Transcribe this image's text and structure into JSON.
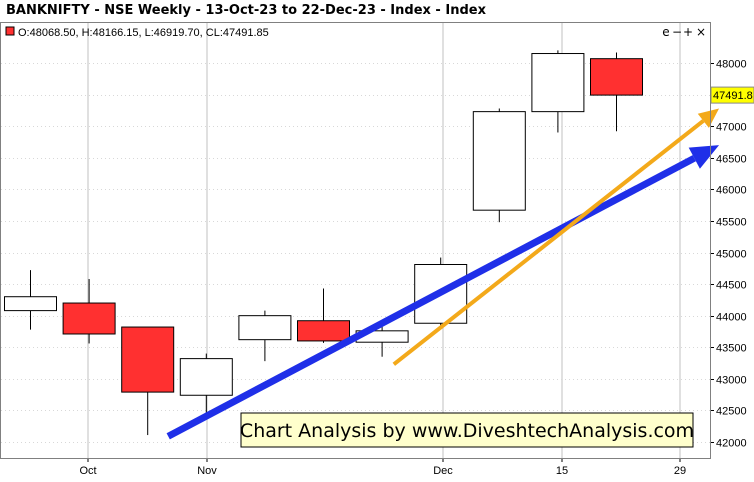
{
  "title": "BANKNIFTY - NSE Weekly - 13-Oct-23 to 22-Dec-23 - Index - Index",
  "ohlc_readout": "O:48068.50, H:48166.15, L:46919.70, CL:47491.85",
  "window_controls": {
    "collapse": "e",
    "minus": "−",
    "plus": "+",
    "close": "×"
  },
  "last_price_label": "47491.8",
  "watermark": "Chart Analysis by www.DiveshtechAnalysis.com",
  "colors": {
    "up_body": "#ffffff",
    "down_body": "#ff3030",
    "candle_outline": "#000000",
    "blue_arrow": "#1f2fe8",
    "orange_arrow": "#f3a91a",
    "price_tag": "#ffff00",
    "watermark_bg": "#ffffcc",
    "grid": "#c0c0c0"
  },
  "chart_data": {
    "type": "candlestick",
    "title": "BANKNIFTY - NSE Weekly - 13-Oct-23 to 22-Dec-23 - Index - Index",
    "x_tick_labels": [
      "Oct",
      "Nov",
      "Dec",
      "15",
      "29"
    ],
    "y_ticks": [
      42000,
      42500,
      43000,
      43500,
      44000,
      44500,
      45000,
      45500,
      46000,
      46500,
      47000,
      47500,
      48000
    ],
    "ylim": [
      41900,
      48450
    ],
    "grid": true,
    "candles": [
      {
        "open": 44080,
        "high": 44720,
        "low": 43780,
        "close": 44300
      },
      {
        "open": 44200,
        "high": 44580,
        "low": 43560,
        "close": 43710
      },
      {
        "open": 43820,
        "high": 43820,
        "low": 42110,
        "close": 42790
      },
      {
        "open": 42740,
        "high": 43400,
        "low": 42430,
        "close": 43320
      },
      {
        "open": 43620,
        "high": 44080,
        "low": 43280,
        "close": 44000
      },
      {
        "open": 43920,
        "high": 44430,
        "low": 43570,
        "close": 43600
      },
      {
        "open": 43580,
        "high": 43830,
        "low": 43350,
        "close": 43760
      },
      {
        "open": 43880,
        "high": 44920,
        "low": 43790,
        "close": 44810
      },
      {
        "open": 45670,
        "high": 47280,
        "low": 45480,
        "close": 47230
      },
      {
        "open": 47230,
        "high": 48200,
        "low": 46900,
        "close": 48150
      },
      {
        "open": 48068.5,
        "high": 48166.15,
        "low": 46919.7,
        "close": 47491.85
      }
    ],
    "trend_lines": [
      {
        "name": "blue",
        "from": {
          "candle": 2.35,
          "price": 42090
        },
        "to": {
          "candle": 11.75,
          "price": 46700
        }
      },
      {
        "name": "orange",
        "from": {
          "candle": 6.2,
          "price": 43230
        },
        "to": {
          "candle": 11.75,
          "price": 47280
        }
      }
    ],
    "last_price": 47491.85
  }
}
